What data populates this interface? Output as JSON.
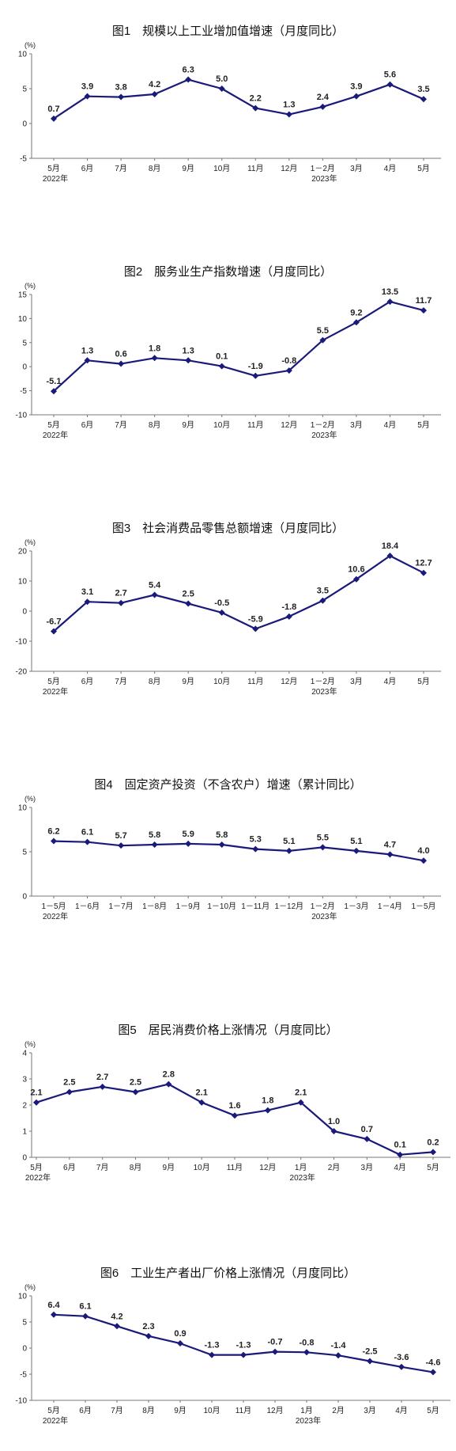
{
  "chart_data": [
    {
      "type": "line",
      "title": "图1　规模以上工业增加值增速（月度同比）",
      "unit": "(%)",
      "categories": [
        "5月",
        "6月",
        "7月",
        "8月",
        "9月",
        "10月",
        "11月",
        "12月",
        "1－2月",
        "3月",
        "4月",
        "5月"
      ],
      "year_labels": [
        {
          "index": 0,
          "text": "2022年"
        },
        {
          "index": 8,
          "text": "2023年"
        }
      ],
      "values": [
        0.7,
        3.9,
        3.8,
        4.2,
        6.3,
        5.0,
        2.2,
        1.3,
        2.4,
        3.9,
        5.6,
        3.5
      ],
      "data_labels": [
        "0.7",
        "3.9",
        "3.8",
        "4.2",
        "6.3",
        "5.0",
        "2.2",
        "1.3",
        "2.4",
        "3.9",
        "5.6",
        "3.5"
      ],
      "ylim": [
        -5,
        10
      ],
      "yticks": [
        -5,
        0,
        5,
        10
      ],
      "color": "#1a1a7a"
    },
    {
      "type": "line",
      "title": "图2　服务业生产指数增速（月度同比）",
      "unit": "(%)",
      "categories": [
        "5月",
        "6月",
        "7月",
        "8月",
        "9月",
        "10月",
        "11月",
        "12月",
        "1－2月",
        "3月",
        "4月",
        "5月"
      ],
      "year_labels": [
        {
          "index": 0,
          "text": "2022年"
        },
        {
          "index": 8,
          "text": "2023年"
        }
      ],
      "values": [
        -5.1,
        1.3,
        0.6,
        1.8,
        1.3,
        0.1,
        -1.9,
        -0.8,
        5.5,
        9.2,
        13.5,
        11.7
      ],
      "data_labels": [
        "-5.1",
        "1.3",
        "0.6",
        "1.8",
        "1.3",
        "0.1",
        "-1.9",
        "-0.8",
        "5.5",
        "9.2",
        "13.5",
        "11.7"
      ],
      "ylim": [
        -10,
        15
      ],
      "yticks": [
        -10,
        -5,
        0,
        5,
        10,
        15
      ],
      "color": "#1a1a7a"
    },
    {
      "type": "line",
      "title": "图3　社会消费品零售总额增速（月度同比）",
      "unit": "(%)",
      "categories": [
        "5月",
        "6月",
        "7月",
        "8月",
        "9月",
        "10月",
        "11月",
        "12月",
        "1－2月",
        "3月",
        "4月",
        "5月"
      ],
      "year_labels": [
        {
          "index": 0,
          "text": "2022年"
        },
        {
          "index": 8,
          "text": "2023年"
        }
      ],
      "values": [
        -6.7,
        3.1,
        2.7,
        5.4,
        2.5,
        -0.5,
        -5.9,
        -1.8,
        3.5,
        10.6,
        18.4,
        12.7
      ],
      "data_labels": [
        "-6.7",
        "3.1",
        "2.7",
        "5.4",
        "2.5",
        "-0.5",
        "-5.9",
        "-1.8",
        "3.5",
        "10.6",
        "18.4",
        "12.7"
      ],
      "ylim": [
        -20,
        20
      ],
      "yticks": [
        -20,
        -10,
        0,
        10,
        20
      ],
      "color": "#1a1a7a"
    },
    {
      "type": "line",
      "title": "图4　固定资产投资（不含农户）增速（累计同比）",
      "unit": "(%)",
      "categories": [
        "1－5月",
        "1－6月",
        "1－7月",
        "1－8月",
        "1－9月",
        "1－10月",
        "1－11月",
        "1－12月",
        "1－2月",
        "1－3月",
        "1－4月",
        "1－5月"
      ],
      "year_labels": [
        {
          "index": 0,
          "text": "2022年"
        },
        {
          "index": 8,
          "text": "2023年"
        }
      ],
      "values": [
        6.2,
        6.1,
        5.7,
        5.8,
        5.9,
        5.8,
        5.3,
        5.1,
        5.5,
        5.1,
        4.7,
        4.0
      ],
      "data_labels": [
        "6.2",
        "6.1",
        "5.7",
        "5.8",
        "5.9",
        "5.8",
        "5.3",
        "5.1",
        "5.5",
        "5.1",
        "4.7",
        "4.0"
      ],
      "ylim": [
        0,
        10
      ],
      "yticks": [
        0,
        5,
        10
      ],
      "color": "#1a1a7a"
    },
    {
      "type": "line",
      "title": "图5　居民消费价格上涨情况（月度同比）",
      "unit": "(%)",
      "categories": [
        "5月",
        "6月",
        "7月",
        "8月",
        "9月",
        "10月",
        "11月",
        "12月",
        "1月",
        "2月",
        "3月",
        "4月",
        "5月"
      ],
      "year_labels": [
        {
          "index": 0,
          "text": "2022年"
        },
        {
          "index": 8,
          "text": "2023年"
        }
      ],
      "values": [
        2.1,
        2.5,
        2.7,
        2.5,
        2.8,
        2.1,
        1.6,
        1.8,
        2.1,
        1.0,
        0.7,
        0.1,
        0.2
      ],
      "data_labels": [
        "2.1",
        "2.5",
        "2.7",
        "2.5",
        "2.8",
        "2.1",
        "1.6",
        "1.8",
        "2.1",
        "1.0",
        "0.7",
        "0.1",
        "0.2"
      ],
      "ylim": [
        0,
        4
      ],
      "yticks": [
        0,
        1,
        2,
        3,
        4
      ],
      "color": "#1a1a7a"
    },
    {
      "type": "line",
      "title": "图6　工业生产者出厂价格上涨情况（月度同比）",
      "unit": "(%)",
      "categories": [
        "5月",
        "6月",
        "7月",
        "8月",
        "9月",
        "10月",
        "11月",
        "12月",
        "1月",
        "2月",
        "3月",
        "4月",
        "5月"
      ],
      "year_labels": [
        {
          "index": 0,
          "text": "2022年"
        },
        {
          "index": 8,
          "text": "2023年"
        }
      ],
      "values": [
        6.4,
        6.1,
        4.2,
        2.3,
        0.9,
        -1.3,
        -1.3,
        -0.7,
        -0.8,
        -1.4,
        -2.5,
        -3.6,
        -4.6
      ],
      "data_labels": [
        "6.4",
        "6.1",
        "4.2",
        "2.3",
        "0.9",
        "-1.3",
        "-1.3",
        "-0.7",
        "-0.8",
        "-1.4",
        "-2.5",
        "-3.6",
        "-4.6"
      ],
      "ylim": [
        -10,
        10
      ],
      "yticks": [
        -10,
        -5,
        0,
        5,
        10
      ],
      "color": "#1a1a7a"
    }
  ]
}
